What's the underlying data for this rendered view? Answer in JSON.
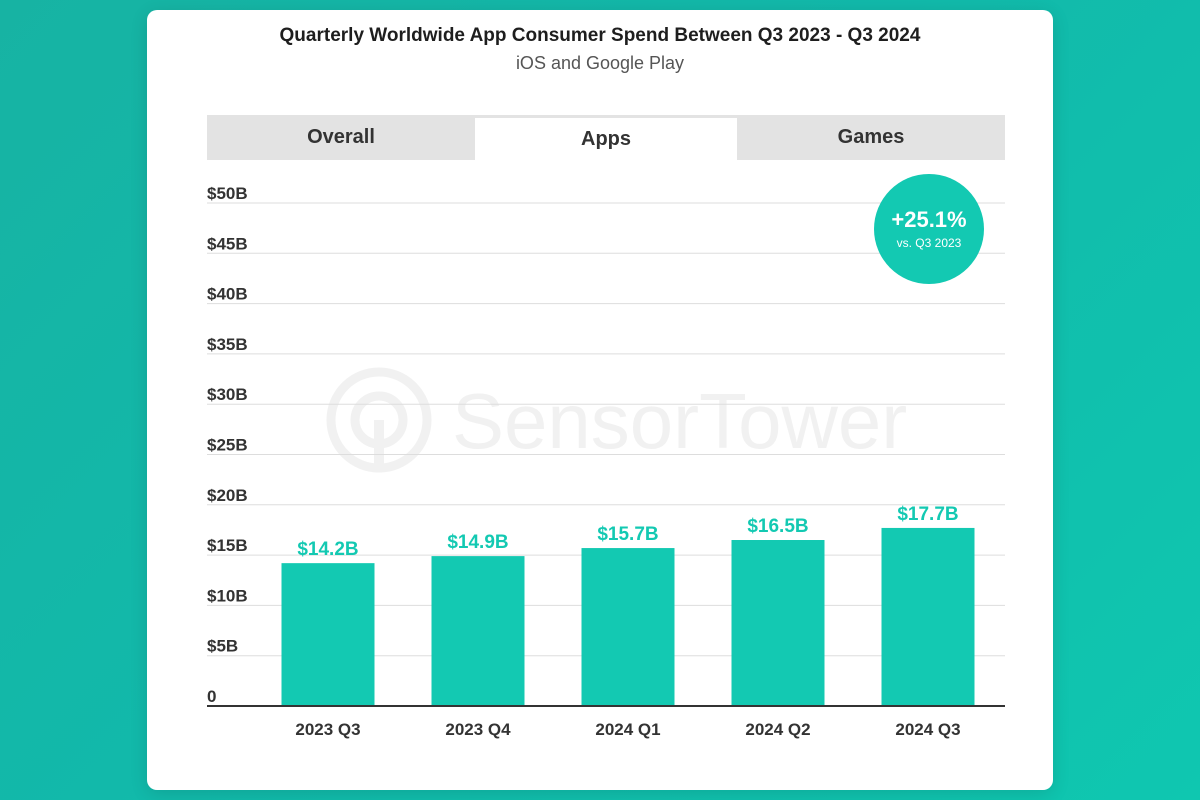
{
  "title": "Quarterly Worldwide App Consumer Spend Between Q3 2023 - Q3 2024",
  "subtitle": "iOS and Google Play",
  "tabs": [
    {
      "label": "Overall",
      "active": false
    },
    {
      "label": "Apps",
      "active": true
    },
    {
      "label": "Games",
      "active": false
    }
  ],
  "badge": {
    "value": "+25.1%",
    "note": "vs. Q3 2023"
  },
  "watermark": {
    "text": "SensorTower",
    "icon": "sensor-tower-logo-icon"
  },
  "colors": {
    "bar": "#13c9b2",
    "label": "#13c9b2",
    "grid": "#dddddd",
    "axis": "#333333"
  },
  "chart_data": {
    "type": "bar",
    "title": "Quarterly Worldwide App Consumer Spend Between Q3 2023 - Q3 2024",
    "subtitle": "iOS and Google Play",
    "categories": [
      "2023 Q3",
      "2023 Q4",
      "2024 Q1",
      "2024 Q2",
      "2024 Q3"
    ],
    "values": [
      14.2,
      14.9,
      15.7,
      16.5,
      17.7
    ],
    "value_labels": [
      "$14.2B",
      "$14.9B",
      "$15.7B",
      "$16.5B",
      "$17.7B"
    ],
    "y_ticks": [
      0,
      5,
      10,
      15,
      20,
      25,
      30,
      35,
      40,
      45,
      50
    ],
    "y_tick_labels": [
      "0",
      "$5B",
      "$10B",
      "$15B",
      "$20B",
      "$25B",
      "$30B",
      "$35B",
      "$40B",
      "$45B",
      "$50B"
    ],
    "ylim": [
      0,
      50
    ],
    "xlabel": "",
    "ylabel": "",
    "grid": true,
    "legend": "none"
  }
}
